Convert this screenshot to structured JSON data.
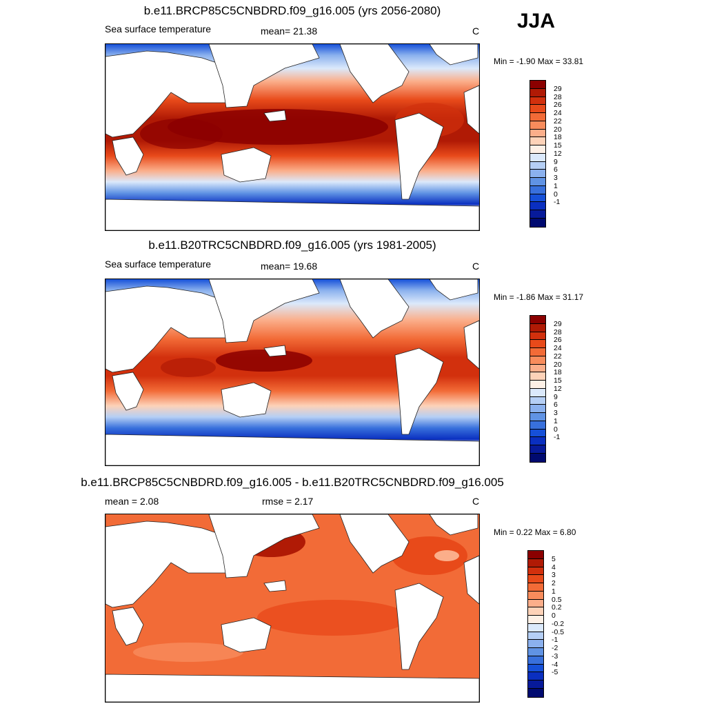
{
  "season": "JJA",
  "panels": [
    {
      "title": "b.e11.BRCP85C5CNBDRD.f09_g16.005 (yrs 2056-2080)",
      "left_label": "Sea surface temperature",
      "stat1": "mean=  21.38",
      "stat2": "",
      "units": "C",
      "minmax": "Min =  -1.90 Max =  33.81",
      "kind": "abs"
    },
    {
      "title": "b.e11.B20TRC5CNBDRD.f09_g16.005 (yrs 1981-2005)",
      "left_label": "Sea surface temperature",
      "stat1": "mean=  19.68",
      "stat2": "",
      "units": "C",
      "minmax": "Min =  -1.86 Max =  31.17",
      "kind": "abs"
    },
    {
      "title": "b.e11.BRCP85C5CNBDRD.f09_g16.005 - b.e11.B20TRC5CNBDRD.f09_g16.005",
      "left_label": "mean =   2.08",
      "stat1": "rmse =   2.17",
      "stat2": "",
      "units": "C",
      "minmax": "Min =   0.22 Max =   6.80",
      "kind": "diff"
    }
  ],
  "colorbars": {
    "abs": {
      "colors": [
        "#8b0000",
        "#b01a05",
        "#d2300d",
        "#e84a1a",
        "#f26b37",
        "#f88c5c",
        "#fbae8a",
        "#fdd2b8",
        "#fdf0e6",
        "#dbe9fb",
        "#b5cff5",
        "#8bb1ee",
        "#6093e4",
        "#3870dc",
        "#1650d8",
        "#0a2fc0",
        "#071a9a",
        "#000a70"
      ],
      "labels": [
        "29",
        "28",
        "26",
        "24",
        "22",
        "20",
        "18",
        "15",
        "12",
        "9",
        "6",
        "3",
        "1",
        "0",
        "-1"
      ]
    },
    "diff": {
      "colors": [
        "#8b0000",
        "#b01a05",
        "#d2300d",
        "#e84a1a",
        "#f26b37",
        "#f88c5c",
        "#fbae8a",
        "#fdd2b8",
        "#fdf0e6",
        "#dbe9fb",
        "#b5cff5",
        "#8bb1ee",
        "#6093e4",
        "#3870dc",
        "#1650d8",
        "#0a2fc0",
        "#071a9a",
        "#000a70"
      ],
      "labels": [
        "5",
        "4",
        "3",
        "2",
        "1",
        "0.5",
        "0.2",
        "0",
        "-0.2",
        "-0.5",
        "-1",
        "-2",
        "-3",
        "-4",
        "-5"
      ]
    }
  }
}
